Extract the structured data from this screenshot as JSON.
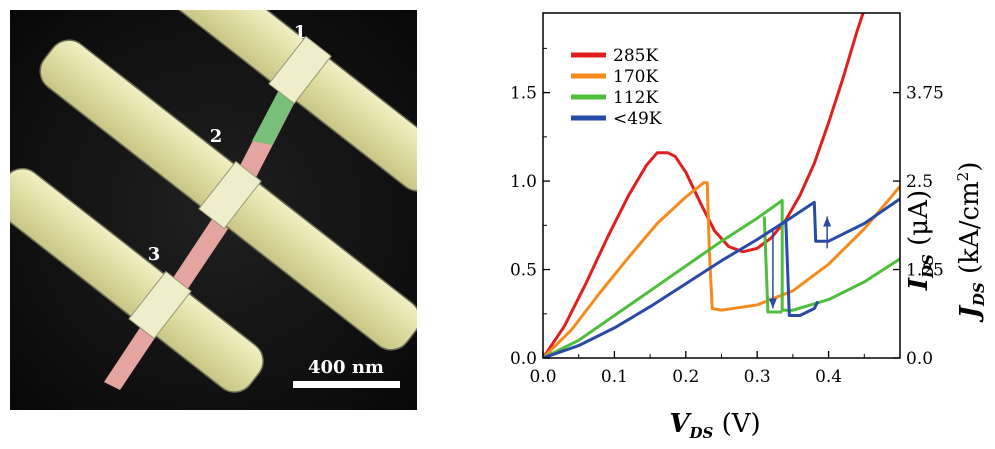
{
  "sem": {
    "electrode_labels": [
      "1",
      "2",
      "3"
    ],
    "scale_bar_label": "400 nm"
  },
  "chart_data": {
    "type": "line",
    "xlabel_main": "V",
    "xlabel_sub": "DS",
    "xlabel_unit": " (V)",
    "ylabel_main": "I",
    "ylabel_sub": "DS",
    "ylabel_unit": " (μA)",
    "y2label_main": "J",
    "y2label_sub": "DS",
    "y2label_unit": " (kA/cm",
    "y2label_sup": "2",
    "y2label_close": ")",
    "xlim": [
      0,
      0.5
    ],
    "ylim": [
      0,
      1.95
    ],
    "y2lim": [
      0,
      4.875
    ],
    "x_ticks": [
      "0.0",
      "0.1",
      "0.2",
      "0.3",
      "0.4"
    ],
    "y_ticks": [
      "0.0",
      "0.5",
      "1.0",
      "1.5"
    ],
    "y2_ticks": [
      "0.0",
      "1.25",
      "2.5",
      "3.75"
    ],
    "x_tick_values": [
      0,
      0.1,
      0.2,
      0.3,
      0.4
    ],
    "y_tick_values": [
      0,
      0.5,
      1.0,
      1.5
    ],
    "y2_tick_values": [
      0,
      1.25,
      2.5,
      3.75
    ],
    "legend_position": "top-left",
    "series": [
      {
        "name": "285K",
        "color": "#e0201e",
        "points": [
          [
            0,
            0
          ],
          [
            0.03,
            0.18
          ],
          [
            0.06,
            0.42
          ],
          [
            0.09,
            0.68
          ],
          [
            0.12,
            0.92
          ],
          [
            0.145,
            1.09
          ],
          [
            0.16,
            1.16
          ],
          [
            0.175,
            1.16
          ],
          [
            0.185,
            1.14
          ],
          [
            0.2,
            1.05
          ],
          [
            0.22,
            0.88
          ],
          [
            0.24,
            0.72
          ],
          [
            0.26,
            0.63
          ],
          [
            0.28,
            0.6
          ],
          [
            0.3,
            0.62
          ],
          [
            0.32,
            0.68
          ],
          [
            0.34,
            0.78
          ],
          [
            0.36,
            0.92
          ],
          [
            0.38,
            1.1
          ],
          [
            0.4,
            1.33
          ],
          [
            0.42,
            1.58
          ],
          [
            0.44,
            1.85
          ],
          [
            0.45,
            1.97
          ]
        ]
      },
      {
        "name": "170K",
        "color": "#f58a1f",
        "points": [
          [
            0,
            0
          ],
          [
            0.04,
            0.16
          ],
          [
            0.08,
            0.37
          ],
          [
            0.12,
            0.57
          ],
          [
            0.16,
            0.76
          ],
          [
            0.2,
            0.91
          ],
          [
            0.225,
            0.99
          ],
          [
            0.23,
            0.99
          ],
          [
            0.233,
            0.6
          ],
          [
            0.237,
            0.28
          ],
          [
            0.25,
            0.27
          ],
          [
            0.3,
            0.3
          ],
          [
            0.35,
            0.38
          ],
          [
            0.4,
            0.53
          ],
          [
            0.45,
            0.73
          ],
          [
            0.5,
            0.97
          ]
        ]
      },
      {
        "name": "112K",
        "color": "#4fbe3c",
        "points": [
          [
            0,
            0
          ],
          [
            0.05,
            0.1
          ],
          [
            0.1,
            0.24
          ],
          [
            0.15,
            0.38
          ],
          [
            0.2,
            0.52
          ],
          [
            0.25,
            0.66
          ],
          [
            0.3,
            0.79
          ],
          [
            0.335,
            0.89
          ],
          [
            0.335,
            0.27
          ],
          [
            0.35,
            0.27
          ],
          [
            0.4,
            0.33
          ],
          [
            0.45,
            0.43
          ],
          [
            0.5,
            0.56
          ]
        ],
        "hysteresis_branch": [
          [
            0.31,
            0.8
          ],
          [
            0.315,
            0.26
          ],
          [
            0.335,
            0.26
          ]
        ]
      },
      {
        "name": "<49K",
        "color": "#2a4aa8",
        "points": [
          [
            0,
            0
          ],
          [
            0.05,
            0.07
          ],
          [
            0.1,
            0.17
          ],
          [
            0.15,
            0.29
          ],
          [
            0.2,
            0.42
          ],
          [
            0.25,
            0.55
          ],
          [
            0.3,
            0.67
          ],
          [
            0.35,
            0.8
          ],
          [
            0.38,
            0.88
          ],
          [
            0.382,
            0.66
          ],
          [
            0.4,
            0.66
          ],
          [
            0.45,
            0.76
          ],
          [
            0.5,
            0.9
          ]
        ],
        "hysteresis_branch": [
          [
            0.34,
            0.78
          ],
          [
            0.345,
            0.24
          ],
          [
            0.36,
            0.24
          ],
          [
            0.38,
            0.28
          ],
          [
            0.385,
            0.32
          ]
        ]
      }
    ],
    "arrows": [
      {
        "x": 0.322,
        "y_from": 0.72,
        "y_to": 0.28,
        "color": "#2a4aa8"
      },
      {
        "x": 0.398,
        "y_from": 0.62,
        "y_to": 0.8,
        "color": "#2a4aa8"
      }
    ]
  }
}
